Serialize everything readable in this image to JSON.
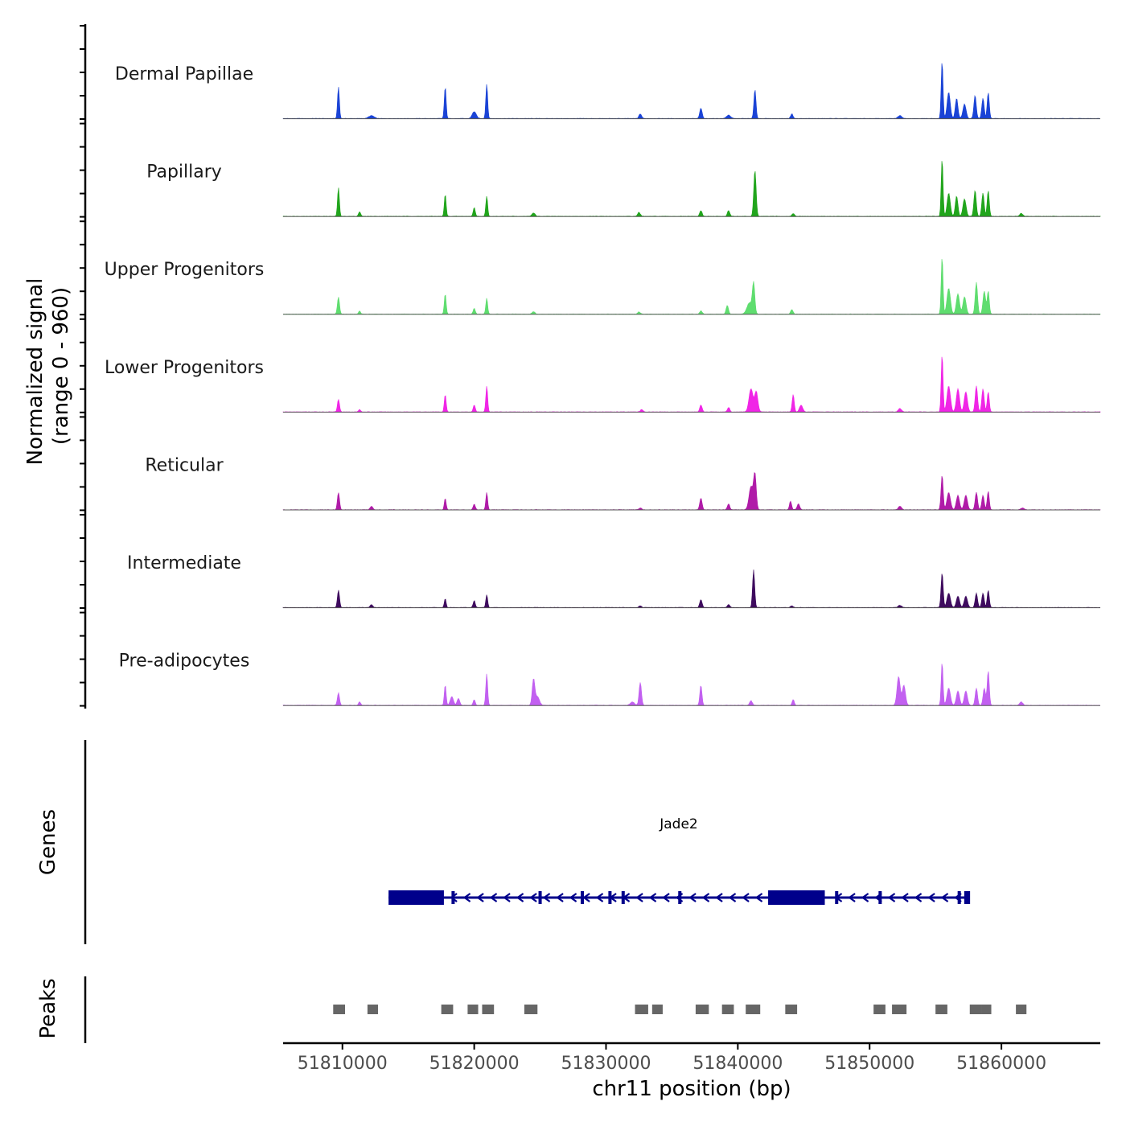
{
  "chart_data": [
    {
      "type": "area",
      "panel": "coverage",
      "ylabel": "Normalized signal",
      "ylabel2": "(range 0 - 960)",
      "yrange": [
        0,
        960
      ],
      "xlim": [
        51805500,
        51867500
      ],
      "tracks": [
        {
          "name": "Dermal Papillae",
          "color": "#1a43d6",
          "peaks": [
            [
              51809700,
              0.55,
              70
            ],
            [
              51812200,
              0.05,
              200
            ],
            [
              51817800,
              0.55,
              70
            ],
            [
              51820000,
              0.12,
              150
            ],
            [
              51820950,
              0.6,
              70
            ],
            [
              51832600,
              0.08,
              100
            ],
            [
              51837200,
              0.18,
              90
            ],
            [
              51839300,
              0.06,
              150
            ],
            [
              51841300,
              0.5,
              80
            ],
            [
              51844100,
              0.08,
              90
            ],
            [
              51852300,
              0.05,
              150
            ],
            [
              51855500,
              1.0,
              70
            ],
            [
              51856000,
              0.45,
              120
            ],
            [
              51856600,
              0.35,
              100
            ],
            [
              51857200,
              0.25,
              120
            ],
            [
              51858000,
              0.4,
              90
            ],
            [
              51858600,
              0.35,
              90
            ],
            [
              51859000,
              0.45,
              80
            ]
          ]
        },
        {
          "name": "Papillary",
          "color": "#21a51c",
          "peaks": [
            [
              51809700,
              0.5,
              70
            ],
            [
              51811300,
              0.08,
              80
            ],
            [
              51817800,
              0.38,
              70
            ],
            [
              51820000,
              0.15,
              80
            ],
            [
              51820950,
              0.35,
              70
            ],
            [
              51824500,
              0.06,
              120
            ],
            [
              51832500,
              0.07,
              100
            ],
            [
              51837200,
              0.1,
              90
            ],
            [
              51839300,
              0.1,
              90
            ],
            [
              51841300,
              0.8,
              90
            ],
            [
              51844200,
              0.05,
              90
            ],
            [
              51855500,
              1.0,
              70
            ],
            [
              51856000,
              0.4,
              120
            ],
            [
              51856600,
              0.35,
              100
            ],
            [
              51857200,
              0.3,
              120
            ],
            [
              51858000,
              0.45,
              90
            ],
            [
              51858600,
              0.4,
              90
            ],
            [
              51859000,
              0.45,
              80
            ],
            [
              51861500,
              0.05,
              120
            ]
          ]
        },
        {
          "name": "Upper Progenitors",
          "color": "#5fdd6f",
          "peaks": [
            [
              51809700,
              0.3,
              80
            ],
            [
              51811300,
              0.05,
              80
            ],
            [
              51817800,
              0.35,
              70
            ],
            [
              51820000,
              0.1,
              80
            ],
            [
              51820950,
              0.28,
              70
            ],
            [
              51824500,
              0.04,
              120
            ],
            [
              51832500,
              0.04,
              100
            ],
            [
              51837200,
              0.06,
              90
            ],
            [
              51839200,
              0.15,
              90
            ],
            [
              51841200,
              0.5,
              90
            ],
            [
              51840900,
              0.2,
              200
            ],
            [
              51844100,
              0.08,
              90
            ],
            [
              51855500,
              1.0,
              70
            ],
            [
              51856000,
              0.45,
              130
            ],
            [
              51856700,
              0.35,
              120
            ],
            [
              51857200,
              0.3,
              120
            ],
            [
              51858100,
              0.55,
              90
            ],
            [
              51858700,
              0.4,
              100
            ],
            [
              51859000,
              0.4,
              80
            ]
          ]
        },
        {
          "name": "Lower Progenitors",
          "color": "#f025e6",
          "peaks": [
            [
              51809700,
              0.22,
              80
            ],
            [
              51811300,
              0.04,
              80
            ],
            [
              51817800,
              0.3,
              70
            ],
            [
              51820000,
              0.12,
              80
            ],
            [
              51820950,
              0.45,
              70
            ],
            [
              51832700,
              0.04,
              100
            ],
            [
              51837200,
              0.12,
              90
            ],
            [
              51839300,
              0.08,
              90
            ],
            [
              51841000,
              0.4,
              150
            ],
            [
              51841400,
              0.35,
              120
            ],
            [
              51844200,
              0.3,
              80
            ],
            [
              51844800,
              0.12,
              120
            ],
            [
              51852300,
              0.06,
              120
            ],
            [
              51855500,
              1.0,
              70
            ],
            [
              51856000,
              0.45,
              130
            ],
            [
              51856700,
              0.4,
              120
            ],
            [
              51857300,
              0.35,
              120
            ],
            [
              51858100,
              0.45,
              90
            ],
            [
              51858600,
              0.4,
              90
            ],
            [
              51859000,
              0.35,
              80
            ]
          ]
        },
        {
          "name": "Reticular",
          "color": "#b01ba8",
          "peaks": [
            [
              51809700,
              0.3,
              80
            ],
            [
              51812200,
              0.06,
              100
            ],
            [
              51817800,
              0.2,
              70
            ],
            [
              51820000,
              0.1,
              80
            ],
            [
              51820950,
              0.3,
              70
            ],
            [
              51832600,
              0.03,
              100
            ],
            [
              51837200,
              0.2,
              90
            ],
            [
              51839300,
              0.1,
              90
            ],
            [
              51841000,
              0.4,
              150
            ],
            [
              51841300,
              0.6,
              100
            ],
            [
              51844000,
              0.15,
              80
            ],
            [
              51844600,
              0.1,
              100
            ],
            [
              51852300,
              0.06,
              120
            ],
            [
              51855500,
              0.6,
              80
            ],
            [
              51856000,
              0.3,
              130
            ],
            [
              51856700,
              0.25,
              120
            ],
            [
              51857300,
              0.25,
              120
            ],
            [
              51858100,
              0.3,
              90
            ],
            [
              51858600,
              0.25,
              90
            ],
            [
              51859000,
              0.32,
              80
            ],
            [
              51861600,
              0.03,
              120
            ]
          ]
        },
        {
          "name": "Intermediate",
          "color": "#3e0b5e",
          "peaks": [
            [
              51809700,
              0.3,
              80
            ],
            [
              51812200,
              0.05,
              100
            ],
            [
              51817800,
              0.15,
              70
            ],
            [
              51820000,
              0.12,
              80
            ],
            [
              51820950,
              0.22,
              70
            ],
            [
              51832600,
              0.03,
              100
            ],
            [
              51837200,
              0.14,
              90
            ],
            [
              51839300,
              0.05,
              90
            ],
            [
              51841200,
              0.65,
              80
            ],
            [
              51844100,
              0.03,
              90
            ],
            [
              51852300,
              0.04,
              120
            ],
            [
              51855500,
              0.6,
              80
            ],
            [
              51856000,
              0.25,
              130
            ],
            [
              51856700,
              0.2,
              120
            ],
            [
              51857300,
              0.2,
              120
            ],
            [
              51858100,
              0.25,
              90
            ],
            [
              51858600,
              0.25,
              90
            ],
            [
              51859000,
              0.3,
              80
            ]
          ]
        },
        {
          "name": "Pre-adipocytes",
          "color": "#c260f0",
          "peaks": [
            [
              51809700,
              0.22,
              80
            ],
            [
              51811300,
              0.06,
              80
            ],
            [
              51817800,
              0.35,
              70
            ],
            [
              51818300,
              0.15,
              120
            ],
            [
              51818800,
              0.12,
              100
            ],
            [
              51820000,
              0.1,
              80
            ],
            [
              51820950,
              0.55,
              70
            ],
            [
              51824500,
              0.45,
              100
            ],
            [
              51824800,
              0.15,
              150
            ],
            [
              51832600,
              0.4,
              90
            ],
            [
              51832000,
              0.06,
              150
            ],
            [
              51837200,
              0.35,
              80
            ],
            [
              51841000,
              0.08,
              100
            ],
            [
              51844200,
              0.1,
              80
            ],
            [
              51852200,
              0.5,
              120
            ],
            [
              51852600,
              0.35,
              120
            ],
            [
              51855500,
              0.75,
              70
            ],
            [
              51856000,
              0.3,
              130
            ],
            [
              51856700,
              0.25,
              120
            ],
            [
              51857300,
              0.25,
              120
            ],
            [
              51858100,
              0.3,
              90
            ],
            [
              51858700,
              0.3,
              90
            ],
            [
              51859000,
              0.6,
              80
            ],
            [
              51861500,
              0.06,
              120
            ]
          ]
        }
      ]
    },
    {
      "type": "gene_track",
      "ylabel": "Genes",
      "gene": "Jade2",
      "strand": "-",
      "start": 51813500,
      "end": 51857500,
      "thick_blocks": [
        [
          51813500,
          51817700
        ],
        [
          51842300,
          51846600
        ]
      ],
      "exons": [
        51818400,
        51825000,
        51828200,
        51830300,
        51831300,
        51835600,
        51847500,
        51850800,
        51856800,
        51857300,
        51857500
      ],
      "color": "#00008b"
    },
    {
      "type": "peak_track",
      "ylabel": "Peaks",
      "color": "#666666",
      "peaks": [
        [
          51809300,
          51810200
        ],
        [
          51811900,
          51812700
        ],
        [
          51817500,
          51818400
        ],
        [
          51819500,
          51820300
        ],
        [
          51820600,
          51821500
        ],
        [
          51823800,
          51824800
        ],
        [
          51832200,
          51833200
        ],
        [
          51833500,
          51834300
        ],
        [
          51836800,
          51837800
        ],
        [
          51838800,
          51839700
        ],
        [
          51840600,
          51841700
        ],
        [
          51843600,
          51844500
        ],
        [
          51850300,
          51851200
        ],
        [
          51851700,
          51852800
        ],
        [
          51855000,
          51855900
        ],
        [
          51857600,
          51858500
        ],
        [
          51858500,
          51859100
        ],
        [
          51861100,
          51861900
        ]
      ]
    },
    {
      "type": "axis",
      "xlabel": "chr11 position (bp)",
      "xticks": [
        51810000,
        51820000,
        51830000,
        51840000,
        51850000,
        51860000
      ],
      "xtick_labels": [
        "51810000",
        "51820000",
        "51830000",
        "51840000",
        "51850000",
        "51860000"
      ]
    }
  ]
}
